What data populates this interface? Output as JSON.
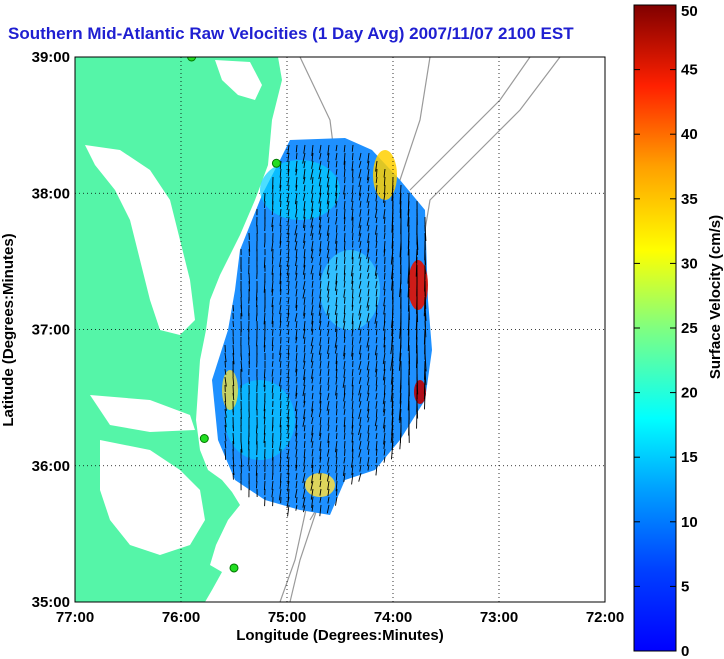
{
  "title": "Southern Mid-Atlantic Raw Velocities (1 Day Avg) 2007/11/07 2100 EST",
  "chart_data": {
    "type": "vector-map",
    "xlabel": "Longitude (Degrees:Minutes)",
    "ylabel": "Latitude (Degrees:Minutes)",
    "xlim": [
      -77,
      -72
    ],
    "ylim": [
      35,
      39
    ],
    "x_ticks": [
      "77:00",
      "76:00",
      "75:00",
      "74:00",
      "73:00",
      "72:00"
    ],
    "y_ticks": [
      "35:00",
      "36:00",
      "37:00",
      "38:00",
      "39:00"
    ],
    "colorbar": {
      "label": "Surface Velocity (cm/s)",
      "range": [
        0,
        50
      ],
      "ticks": [
        "0",
        "5",
        "10",
        "15",
        "20",
        "25",
        "30",
        "35",
        "40",
        "45",
        "50"
      ],
      "colormap": "jet"
    },
    "grid": true,
    "land_color": "#55f5a8",
    "sites": [
      {
        "lon": -75.9,
        "lat": 39.0
      },
      {
        "lon": -75.1,
        "lat": 38.22
      },
      {
        "lon": -75.78,
        "lat": 36.2
      },
      {
        "lon": -75.5,
        "lat": 35.25
      }
    ]
  }
}
